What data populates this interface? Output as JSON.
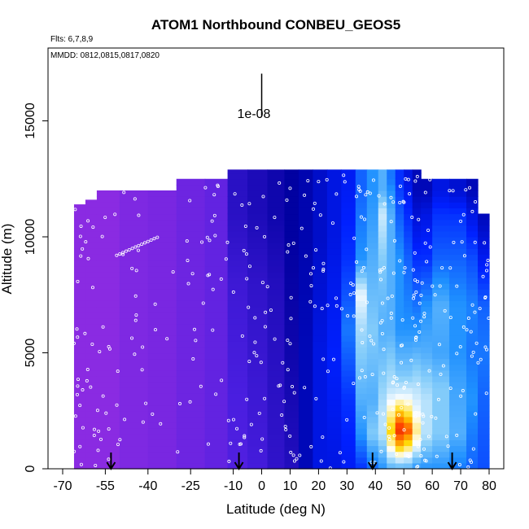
{
  "title": "ATOM1 Northbound CONBEU_GEOS5",
  "flights_note": "Flts: 6,7,8,9",
  "dates_note": "MMDD: 0812,0815,0817,0820",
  "scale_label": "1e-08",
  "chart_data": {
    "type": "heatmap",
    "title": "ATOM1 Northbound CONBEU_GEOS5",
    "xlabel": "Latitude (deg N)",
    "ylabel": "Altitude (m)",
    "xlim": [
      -70,
      80
    ],
    "ylim": [
      0,
      17500
    ],
    "x_ticks": [
      -70,
      -55,
      -40,
      -25,
      -10,
      0,
      10,
      20,
      30,
      40,
      50,
      60,
      70,
      80
    ],
    "y_ticks": [
      0,
      5000,
      10000,
      15000
    ],
    "colormap": [
      "#8a2be2",
      "#4a1ee0",
      "#0000a0",
      "#0020ff",
      "#1e90ff",
      "#87cefa",
      "#ffffff",
      "#ffd700",
      "#ff4500",
      "#c00000"
    ],
    "columns": [
      {
        "x0": -66,
        "x1": -62,
        "top": 11400,
        "profile": [
          [
            0,
            0.0
          ]
        ]
      },
      {
        "x0": -62,
        "x1": -58,
        "top": 11600,
        "profile": [
          [
            0,
            0.0
          ]
        ]
      },
      {
        "x0": -58,
        "x1": -50,
        "top": 12000,
        "profile": [
          [
            0,
            0.0
          ]
        ]
      },
      {
        "x0": -50,
        "x1": -40,
        "top": 12000,
        "profile": [
          [
            0,
            0.02
          ]
        ]
      },
      {
        "x0": -40,
        "x1": -30,
        "top": 12000,
        "profile": [
          [
            0,
            0.03
          ]
        ]
      },
      {
        "x0": -30,
        "x1": -20,
        "top": 12500,
        "profile": [
          [
            0,
            0.05
          ]
        ]
      },
      {
        "x0": -20,
        "x1": -12,
        "top": 12500,
        "profile": [
          [
            0,
            0.07
          ]
        ]
      },
      {
        "x0": -12,
        "x1": -5,
        "top": 12900,
        "profile": [
          [
            0,
            0.1
          ],
          [
            8000,
            0.13
          ],
          [
            11000,
            0.16
          ]
        ]
      },
      {
        "x0": -5,
        "x1": 2,
        "top": 12900,
        "profile": [
          [
            0,
            0.12
          ],
          [
            8000,
            0.15
          ],
          [
            11000,
            0.18
          ]
        ]
      },
      {
        "x0": 2,
        "x1": 8,
        "top": 12900,
        "profile": [
          [
            0,
            0.15
          ],
          [
            8000,
            0.17
          ],
          [
            11000,
            0.2
          ]
        ]
      },
      {
        "x0": 8,
        "x1": 13,
        "top": 12900,
        "profile": [
          [
            0,
            0.17
          ],
          [
            5000,
            0.2
          ],
          [
            10000,
            0.22
          ]
        ]
      },
      {
        "x0": 13,
        "x1": 18,
        "top": 12900,
        "profile": [
          [
            0,
            0.25
          ],
          [
            5000,
            0.25
          ],
          [
            10000,
            0.24
          ]
        ]
      },
      {
        "x0": 18,
        "x1": 23,
        "top": 12900,
        "profile": [
          [
            0,
            0.3
          ],
          [
            5000,
            0.3
          ],
          [
            10000,
            0.27
          ]
        ]
      },
      {
        "x0": 23,
        "x1": 28,
        "top": 12900,
        "profile": [
          [
            0,
            0.3
          ],
          [
            5000,
            0.33
          ],
          [
            10000,
            0.3
          ]
        ]
      },
      {
        "x0": 28,
        "x1": 33,
        "top": 12900,
        "profile": [
          [
            0,
            0.32
          ],
          [
            3000,
            0.35
          ],
          [
            6000,
            0.42
          ],
          [
            9000,
            0.35
          ],
          [
            12000,
            0.32
          ]
        ]
      },
      {
        "x0": 33,
        "x1": 37,
        "top": 12900,
        "profile": [
          [
            0,
            0.35
          ],
          [
            1500,
            0.45
          ],
          [
            3000,
            0.5
          ],
          [
            6000,
            0.58
          ],
          [
            7500,
            0.65
          ],
          [
            9000,
            0.45
          ],
          [
            12000,
            0.4
          ]
        ]
      },
      {
        "x0": 37,
        "x1": 41,
        "top": 12900,
        "profile": [
          [
            0,
            0.4
          ],
          [
            1500,
            0.55
          ],
          [
            3000,
            0.5
          ],
          [
            6000,
            0.55
          ],
          [
            9000,
            0.5
          ],
          [
            12000,
            0.45
          ]
        ]
      },
      {
        "x0": 41,
        "x1": 44,
        "top": 12900,
        "profile": [
          [
            0,
            0.45
          ],
          [
            1500,
            0.6
          ],
          [
            2500,
            0.6
          ],
          [
            4000,
            0.55
          ],
          [
            6000,
            0.5
          ],
          [
            9000,
            0.55
          ],
          [
            11000,
            0.62
          ],
          [
            12000,
            0.5
          ]
        ]
      },
      {
        "x0": 44,
        "x1": 47,
        "top": 12900,
        "profile": [
          [
            0,
            0.5
          ],
          [
            1000,
            0.7
          ],
          [
            1700,
            0.78
          ],
          [
            2500,
            0.7
          ],
          [
            3500,
            0.6
          ],
          [
            6000,
            0.5
          ],
          [
            9000,
            0.5
          ],
          [
            11000,
            0.5
          ],
          [
            12500,
            0.42
          ]
        ]
      },
      {
        "x0": 47,
        "x1": 50,
        "top": 12900,
        "profile": [
          [
            0,
            0.5
          ],
          [
            1000,
            0.8
          ],
          [
            1700,
            0.92
          ],
          [
            2400,
            0.8
          ],
          [
            3200,
            0.64
          ],
          [
            4000,
            0.55
          ],
          [
            6000,
            0.45
          ],
          [
            9000,
            0.45
          ],
          [
            12500,
            0.35
          ]
        ]
      },
      {
        "x0": 50,
        "x1": 53,
        "top": 12900,
        "profile": [
          [
            0,
            0.5
          ],
          [
            1000,
            0.75
          ],
          [
            1700,
            0.88
          ],
          [
            2400,
            0.75
          ],
          [
            3200,
            0.64
          ],
          [
            4000,
            0.55
          ],
          [
            6000,
            0.45
          ],
          [
            9000,
            0.4
          ],
          [
            12500,
            0.3
          ]
        ]
      },
      {
        "x0": 53,
        "x1": 56,
        "top": 12900,
        "profile": [
          [
            0,
            0.45
          ],
          [
            1000,
            0.65
          ],
          [
            1700,
            0.72
          ],
          [
            2500,
            0.65
          ],
          [
            3500,
            0.6
          ],
          [
            6000,
            0.45
          ],
          [
            9000,
            0.35
          ],
          [
            12000,
            0.25
          ]
        ]
      },
      {
        "x0": 56,
        "x1": 60,
        "top": 12500,
        "profile": [
          [
            0,
            0.45
          ],
          [
            1500,
            0.6
          ],
          [
            3000,
            0.6
          ],
          [
            5000,
            0.5
          ],
          [
            7000,
            0.45
          ],
          [
            9000,
            0.35
          ],
          [
            11000,
            0.3
          ],
          [
            12000,
            0.25
          ]
        ]
      },
      {
        "x0": 60,
        "x1": 66,
        "top": 12500,
        "profile": [
          [
            0,
            0.45
          ],
          [
            1500,
            0.55
          ],
          [
            3500,
            0.55
          ],
          [
            5000,
            0.48
          ],
          [
            7000,
            0.5
          ],
          [
            9000,
            0.4
          ],
          [
            11000,
            0.35
          ],
          [
            12000,
            0.3
          ]
        ]
      },
      {
        "x0": 66,
        "x1": 72,
        "top": 12500,
        "profile": [
          [
            0,
            0.42
          ],
          [
            1500,
            0.5
          ],
          [
            3500,
            0.48
          ],
          [
            5000,
            0.45
          ],
          [
            7000,
            0.45
          ],
          [
            9000,
            0.4
          ],
          [
            11000,
            0.35
          ],
          [
            12000,
            0.28
          ]
        ]
      },
      {
        "x0": 72,
        "x1": 76,
        "top": 12500,
        "profile": [
          [
            0,
            0.4
          ],
          [
            3000,
            0.45
          ],
          [
            5000,
            0.42
          ],
          [
            7000,
            0.43
          ],
          [
            9000,
            0.38
          ],
          [
            11000,
            0.3
          ],
          [
            12000,
            0.25
          ]
        ]
      },
      {
        "x0": 76,
        "x1": 80,
        "top": 11000,
        "profile": [
          [
            0,
            0.38
          ],
          [
            3000,
            0.4
          ],
          [
            5000,
            0.42
          ],
          [
            7000,
            0.4
          ],
          [
            9000,
            0.32
          ],
          [
            11000,
            0.25
          ]
        ]
      }
    ],
    "flight_markers_lat": [
      -53,
      -8,
      39,
      67
    ],
    "scale_bar": {
      "x": 0,
      "y0": 15500,
      "y1": 17000
    }
  }
}
